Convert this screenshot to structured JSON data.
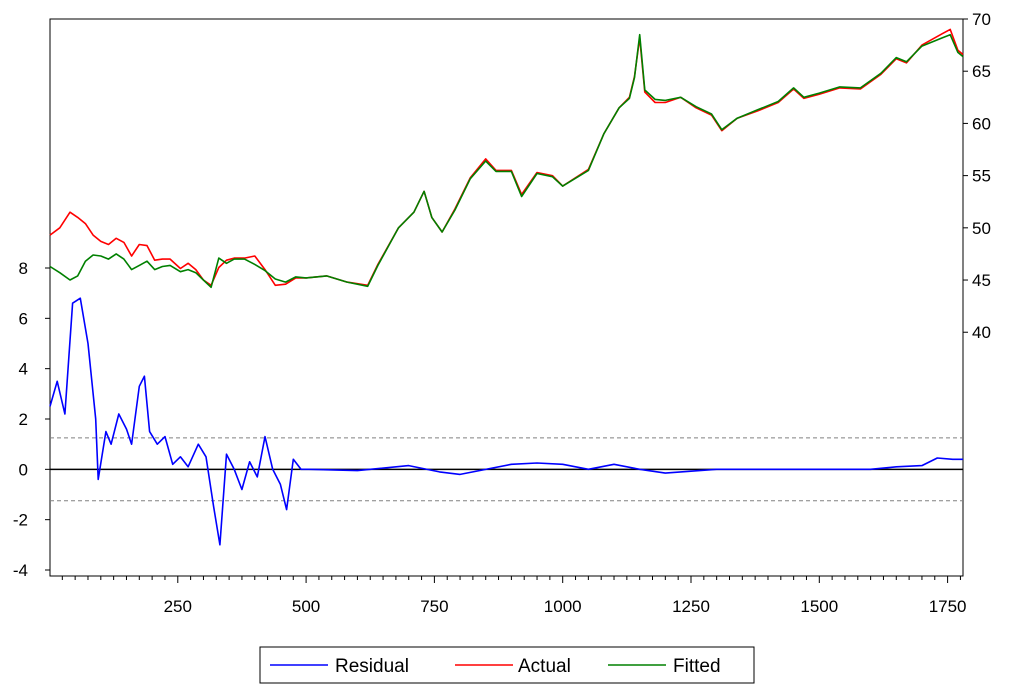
{
  "chart_data": {
    "type": "line",
    "title": "",
    "xlabel": "",
    "x_ticks": [
      250,
      500,
      750,
      1000,
      1250,
      1500,
      1750
    ],
    "xlim": [
      1,
      1780
    ],
    "left_axis": {
      "ticks": [
        -4,
        -2,
        0,
        2,
        4,
        6,
        8
      ],
      "ylim": [
        -4,
        8
      ],
      "series": [
        "Residual"
      ]
    },
    "right_axis": {
      "ticks": [
        40,
        45,
        50,
        55,
        60,
        65,
        70
      ],
      "ylim": [
        36,
        70
      ],
      "series": [
        "Actual",
        "Fitted"
      ]
    },
    "reference_lines": {
      "solid_at": 0,
      "dashed_at": [
        1.25,
        -1.25
      ]
    },
    "legend_position": "bottom-center",
    "grid": false,
    "series": [
      {
        "name": "Residual",
        "color": "#0000ff",
        "axis": "left",
        "points": [
          [
            1,
            2.5
          ],
          [
            15,
            3.5
          ],
          [
            30,
            2.2
          ],
          [
            45,
            6.6
          ],
          [
            60,
            6.8
          ],
          [
            75,
            5.0
          ],
          [
            90,
            2.0
          ],
          [
            95,
            -0.4
          ],
          [
            110,
            1.5
          ],
          [
            120,
            1.0
          ],
          [
            135,
            2.2
          ],
          [
            150,
            1.6
          ],
          [
            160,
            1.0
          ],
          [
            175,
            3.3
          ],
          [
            185,
            3.7
          ],
          [
            195,
            1.5
          ],
          [
            210,
            1.0
          ],
          [
            225,
            1.3
          ],
          [
            240,
            0.2
          ],
          [
            255,
            0.5
          ],
          [
            270,
            0.1
          ],
          [
            290,
            1.0
          ],
          [
            305,
            0.5
          ],
          [
            320,
            -1.5
          ],
          [
            332,
            -3.0
          ],
          [
            345,
            0.6
          ],
          [
            360,
            0.0
          ],
          [
            375,
            -0.8
          ],
          [
            390,
            0.3
          ],
          [
            405,
            -0.3
          ],
          [
            420,
            1.3
          ],
          [
            435,
            0.0
          ],
          [
            450,
            -0.6
          ],
          [
            462,
            -1.6
          ],
          [
            475,
            0.4
          ],
          [
            490,
            0.0
          ],
          [
            505,
            0.0
          ],
          [
            600,
            -0.05
          ],
          [
            700,
            0.15
          ],
          [
            760,
            -0.1
          ],
          [
            800,
            -0.2
          ],
          [
            900,
            0.2
          ],
          [
            950,
            0.25
          ],
          [
            1000,
            0.2
          ],
          [
            1050,
            0.0
          ],
          [
            1100,
            0.2
          ],
          [
            1150,
            0.0
          ],
          [
            1200,
            -0.15
          ],
          [
            1300,
            0.0
          ],
          [
            1400,
            0.0
          ],
          [
            1500,
            0.0
          ],
          [
            1600,
            0.0
          ],
          [
            1650,
            0.1
          ],
          [
            1700,
            0.15
          ],
          [
            1730,
            0.45
          ],
          [
            1760,
            0.4
          ],
          [
            1780,
            0.4
          ]
        ]
      },
      {
        "name": "Actual",
        "color": "#ff0000",
        "axis": "right",
        "points": [
          [
            1,
            49.3
          ],
          [
            20,
            50.0
          ],
          [
            40,
            51.5
          ],
          [
            55,
            51.0
          ],
          [
            70,
            50.4
          ],
          [
            85,
            49.3
          ],
          [
            100,
            48.7
          ],
          [
            115,
            48.4
          ],
          [
            130,
            49.0
          ],
          [
            145,
            48.6
          ],
          [
            160,
            47.3
          ],
          [
            175,
            48.4
          ],
          [
            190,
            48.3
          ],
          [
            205,
            46.9
          ],
          [
            220,
            47.0
          ],
          [
            235,
            47.0
          ],
          [
            255,
            46.1
          ],
          [
            270,
            46.6
          ],
          [
            285,
            46.0
          ],
          [
            300,
            45.0
          ],
          [
            315,
            44.5
          ],
          [
            330,
            46.2
          ],
          [
            345,
            46.9
          ],
          [
            360,
            47.1
          ],
          [
            380,
            47.1
          ],
          [
            400,
            47.3
          ],
          [
            420,
            46.0
          ],
          [
            440,
            44.5
          ],
          [
            460,
            44.6
          ],
          [
            480,
            45.2
          ],
          [
            500,
            45.2
          ],
          [
            540,
            45.4
          ],
          [
            580,
            44.8
          ],
          [
            620,
            44.5
          ],
          [
            640,
            46.5
          ],
          [
            680,
            50.0
          ],
          [
            710,
            51.5
          ],
          [
            730,
            53.5
          ],
          [
            745,
            51.0
          ],
          [
            765,
            49.6
          ],
          [
            790,
            51.8
          ],
          [
            820,
            54.8
          ],
          [
            850,
            56.6
          ],
          [
            870,
            55.5
          ],
          [
            900,
            55.5
          ],
          [
            920,
            53.2
          ],
          [
            950,
            55.3
          ],
          [
            980,
            55.0
          ],
          [
            1000,
            54.0
          ],
          [
            1050,
            55.6
          ],
          [
            1080,
            59.0
          ],
          [
            1110,
            61.5
          ],
          [
            1130,
            62.5
          ],
          [
            1140,
            64.5
          ],
          [
            1150,
            68.2
          ],
          [
            1160,
            63.0
          ],
          [
            1180,
            62.0
          ],
          [
            1200,
            62.0
          ],
          [
            1230,
            62.5
          ],
          [
            1260,
            61.5
          ],
          [
            1290,
            60.8
          ],
          [
            1310,
            59.3
          ],
          [
            1340,
            60.5
          ],
          [
            1380,
            61.2
          ],
          [
            1420,
            62.0
          ],
          [
            1450,
            63.3
          ],
          [
            1470,
            62.4
          ],
          [
            1500,
            62.8
          ],
          [
            1540,
            63.4
          ],
          [
            1580,
            63.3
          ],
          [
            1620,
            64.7
          ],
          [
            1650,
            66.2
          ],
          [
            1670,
            65.8
          ],
          [
            1700,
            67.5
          ],
          [
            1740,
            68.6
          ],
          [
            1755,
            69.0
          ],
          [
            1770,
            67.0
          ],
          [
            1780,
            66.6
          ]
        ]
      },
      {
        "name": "Fitted",
        "color": "#008000",
        "axis": "right",
        "points": [
          [
            1,
            46.3
          ],
          [
            20,
            45.7
          ],
          [
            40,
            45.0
          ],
          [
            55,
            45.4
          ],
          [
            70,
            46.8
          ],
          [
            85,
            47.4
          ],
          [
            100,
            47.3
          ],
          [
            115,
            47.0
          ],
          [
            130,
            47.5
          ],
          [
            145,
            47.0
          ],
          [
            160,
            46.0
          ],
          [
            175,
            46.4
          ],
          [
            190,
            46.8
          ],
          [
            205,
            46.0
          ],
          [
            220,
            46.3
          ],
          [
            235,
            46.4
          ],
          [
            255,
            45.8
          ],
          [
            270,
            46.0
          ],
          [
            285,
            45.7
          ],
          [
            300,
            45.0
          ],
          [
            315,
            44.3
          ],
          [
            330,
            47.1
          ],
          [
            345,
            46.6
          ],
          [
            360,
            47.0
          ],
          [
            380,
            47.0
          ],
          [
            400,
            46.5
          ],
          [
            420,
            45.9
          ],
          [
            440,
            45.1
          ],
          [
            460,
            44.8
          ],
          [
            480,
            45.3
          ],
          [
            500,
            45.2
          ],
          [
            540,
            45.4
          ],
          [
            580,
            44.8
          ],
          [
            620,
            44.4
          ],
          [
            640,
            46.4
          ],
          [
            680,
            50.0
          ],
          [
            710,
            51.5
          ],
          [
            730,
            53.5
          ],
          [
            745,
            51.0
          ],
          [
            765,
            49.6
          ],
          [
            790,
            51.7
          ],
          [
            820,
            54.7
          ],
          [
            850,
            56.4
          ],
          [
            870,
            55.4
          ],
          [
            900,
            55.4
          ],
          [
            920,
            53.0
          ],
          [
            950,
            55.2
          ],
          [
            980,
            54.9
          ],
          [
            1000,
            54.0
          ],
          [
            1050,
            55.5
          ],
          [
            1080,
            59.0
          ],
          [
            1110,
            61.5
          ],
          [
            1130,
            62.4
          ],
          [
            1140,
            64.4
          ],
          [
            1150,
            68.5
          ],
          [
            1160,
            63.2
          ],
          [
            1180,
            62.3
          ],
          [
            1200,
            62.2
          ],
          [
            1230,
            62.5
          ],
          [
            1260,
            61.6
          ],
          [
            1290,
            60.9
          ],
          [
            1310,
            59.4
          ],
          [
            1340,
            60.5
          ],
          [
            1380,
            61.3
          ],
          [
            1420,
            62.1
          ],
          [
            1450,
            63.4
          ],
          [
            1470,
            62.5
          ],
          [
            1500,
            62.9
          ],
          [
            1540,
            63.5
          ],
          [
            1580,
            63.4
          ],
          [
            1620,
            64.8
          ],
          [
            1650,
            66.3
          ],
          [
            1670,
            65.9
          ],
          [
            1700,
            67.4
          ],
          [
            1740,
            68.2
          ],
          [
            1755,
            68.5
          ],
          [
            1770,
            66.8
          ],
          [
            1780,
            66.4
          ]
        ]
      }
    ]
  }
}
